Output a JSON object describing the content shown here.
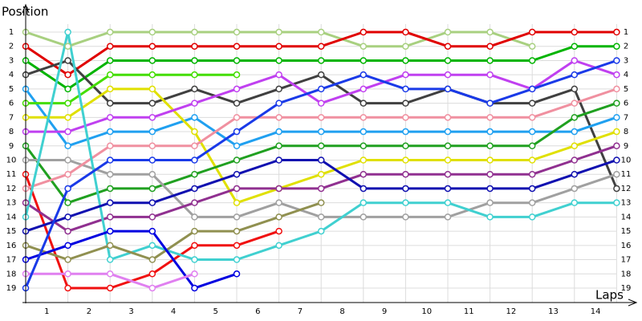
{
  "chart_data": {
    "type": "line",
    "y_label": "Position",
    "x_label": "Laps",
    "x": [
      0,
      1,
      2,
      3,
      4,
      5,
      6,
      7,
      8,
      9,
      10,
      11,
      12,
      13,
      14
    ],
    "xlim": [
      0,
      14.4
    ],
    "xticks": [
      {
        "value": 0.5,
        "label": "1"
      },
      {
        "value": 1.5,
        "label": "2"
      },
      {
        "value": 2.5,
        "label": "3"
      },
      {
        "value": 3.5,
        "label": "4"
      },
      {
        "value": 4.5,
        "label": "5"
      },
      {
        "value": 5.5,
        "label": "6"
      },
      {
        "value": 6.5,
        "label": "7"
      },
      {
        "value": 7.5,
        "label": "8"
      },
      {
        "value": 8.5,
        "label": "9"
      },
      {
        "value": 9.5,
        "label": "10"
      },
      {
        "value": 10.5,
        "label": "11"
      },
      {
        "value": 11.5,
        "label": "12"
      },
      {
        "value": 12.5,
        "label": "13"
      },
      {
        "value": 13.5,
        "label": "14"
      }
    ],
    "ylim": [
      0,
      20
    ],
    "y_inverted": true,
    "yticks": [
      1,
      2,
      3,
      4,
      5,
      6,
      7,
      8,
      9,
      10,
      11,
      12,
      13,
      14,
      15,
      16,
      17,
      18,
      19
    ],
    "grid": true,
    "series": [
      {
        "color": "#a8d080",
        "values": [
          1,
          2,
          1,
          1,
          1,
          1,
          1,
          1,
          2,
          2,
          1,
          1,
          2,
          null,
          null
        ]
      },
      {
        "color": "#e00000",
        "values": [
          2,
          4,
          2,
          2,
          2,
          2,
          2,
          2,
          1,
          1,
          2,
          2,
          1,
          1,
          1
        ]
      },
      {
        "color": "#00b400",
        "values": [
          3,
          5,
          3,
          3,
          3,
          3,
          3,
          3,
          3,
          3,
          3,
          3,
          3,
          2,
          2
        ]
      },
      {
        "color": "#404040",
        "values": [
          4,
          3,
          6,
          6,
          5,
          6,
          5,
          4,
          6,
          6,
          5,
          6,
          6,
          5,
          12
        ]
      },
      {
        "color": "#20a0f0",
        "values": [
          5,
          9,
          8,
          8,
          7,
          9,
          8,
          8,
          8,
          8,
          8,
          8,
          8,
          8,
          7
        ]
      },
      {
        "color": "#44dd00",
        "values": [
          6,
          6,
          4,
          4,
          4,
          4,
          null,
          null,
          null,
          null,
          null,
          null,
          null,
          null,
          null
        ]
      },
      {
        "color": "#e0e000",
        "values": [
          7,
          7,
          5,
          5,
          8,
          13,
          12,
          11,
          10,
          10,
          10,
          10,
          10,
          9,
          8
        ]
      },
      {
        "color": "#c040f0",
        "values": [
          8,
          8,
          7,
          7,
          6,
          5,
          4,
          6,
          5,
          4,
          4,
          4,
          5,
          3,
          4
        ]
      },
      {
        "color": "#20a020",
        "values": [
          9,
          13,
          12,
          12,
          11,
          10,
          9,
          9,
          9,
          9,
          9,
          9,
          9,
          7,
          6
        ]
      },
      {
        "color": "#a0a0a0",
        "values": [
          10,
          10,
          11,
          11,
          14,
          14,
          13,
          14,
          14,
          14,
          14,
          13,
          13,
          12,
          11
        ]
      },
      {
        "color": "#f01010",
        "values": [
          11,
          19,
          19,
          18,
          16,
          16,
          15,
          null,
          null,
          null,
          null,
          null,
          null,
          null,
          null
        ]
      },
      {
        "color": "#f090a0",
        "values": [
          12,
          11,
          9,
          9,
          9,
          7,
          7,
          7,
          7,
          7,
          7,
          7,
          7,
          6,
          5
        ]
      },
      {
        "color": "#903090",
        "values": [
          13,
          15,
          14,
          14,
          13,
          12,
          12,
          12,
          11,
          11,
          11,
          11,
          11,
          10,
          9
        ]
      },
      {
        "color": "#40d0d0",
        "values": [
          14,
          1,
          17,
          16,
          17,
          17,
          16,
          15,
          13,
          13,
          13,
          14,
          14,
          13,
          13
        ]
      },
      {
        "color": "#1010b0",
        "values": [
          15,
          14,
          13,
          13,
          12,
          11,
          10,
          10,
          12,
          12,
          12,
          12,
          12,
          11,
          10
        ]
      },
      {
        "color": "#909050",
        "values": [
          16,
          17,
          16,
          17,
          15,
          15,
          14,
          13,
          null,
          null,
          null,
          null,
          null,
          null,
          null
        ]
      },
      {
        "color": "#0000e0",
        "values": [
          17,
          16,
          15,
          15,
          19,
          18,
          null,
          null,
          null,
          null,
          null,
          null,
          null,
          null,
          null
        ]
      },
      {
        "color": "#e080f0",
        "values": [
          18,
          18,
          18,
          19,
          18,
          null,
          null,
          null,
          null,
          null,
          null,
          null,
          null,
          null,
          null
        ]
      },
      {
        "color": "#1a3ae8",
        "values": [
          19,
          12,
          10,
          10,
          10,
          8,
          6,
          5,
          4,
          5,
          5,
          6,
          5,
          4,
          3
        ]
      }
    ]
  }
}
